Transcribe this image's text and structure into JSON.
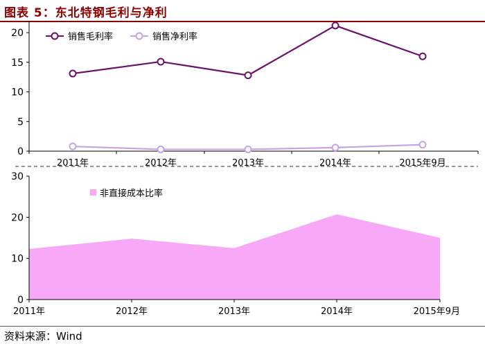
{
  "title": "图表 5：东北特钢毛利与净利",
  "source": "资料来源：Wind",
  "colors": {
    "title": "#8B0000",
    "gross": "#6B0F6B",
    "net": "#C8A2E8",
    "area": "#F7A8F7"
  },
  "chart_data": [
    {
      "type": "line",
      "categories": [
        "2011年",
        "2012年",
        "2013年",
        "2014年",
        "2015年9月"
      ],
      "series": [
        {
          "name": "销售毛利率",
          "values": [
            13.1,
            15.1,
            12.8,
            21.2,
            16.0
          ]
        },
        {
          "name": "销售净利率",
          "values": [
            0.8,
            0.3,
            0.3,
            0.6,
            1.1
          ]
        }
      ],
      "yticks": [
        0,
        5,
        10,
        15,
        20
      ],
      "ylim": [
        0,
        22
      ],
      "legend": "top-left",
      "grid": false
    },
    {
      "type": "area",
      "categories": [
        "2011年",
        "2012年",
        "2013年",
        "2014年",
        "2015年9月"
      ],
      "series": [
        {
          "name": "非直接成本比率",
          "values": [
            12.3,
            14.8,
            12.5,
            20.7,
            15.0
          ]
        }
      ],
      "yticks": [
        0,
        10,
        20,
        30
      ],
      "ylim": [
        0,
        30
      ],
      "legend": "top-left",
      "grid": false
    }
  ]
}
